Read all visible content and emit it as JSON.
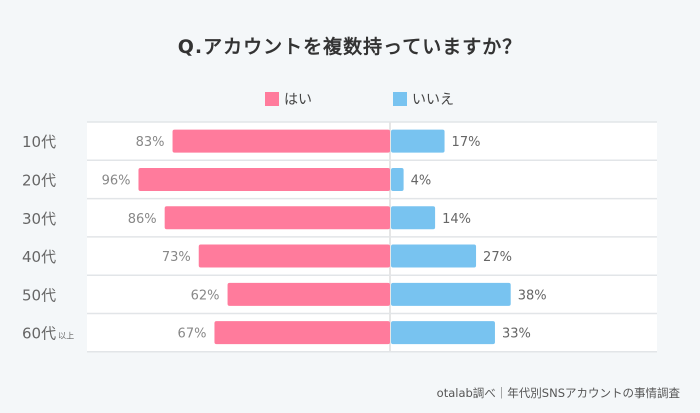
{
  "chart_data": {
    "type": "bar",
    "orientation": "diverging-horizontal",
    "title": "Q.アカウントを複数持っていますか？",
    "categories": [
      "10代",
      "20代",
      "30代",
      "40代",
      "50代",
      "60代"
    ],
    "category_suffix": {
      "5": "以上"
    },
    "series": [
      {
        "name": "はい",
        "color": "#ff7b9c",
        "values": [
          83,
          96,
          86,
          73,
          62,
          67
        ]
      },
      {
        "name": "いいえ",
        "color": "#78c3f0",
        "values": [
          17,
          4,
          14,
          27,
          38,
          33
        ]
      }
    ],
    "value_unit": "%",
    "grid": false,
    "legend": "top-center"
  },
  "source": "otalab調べ｜年代別SNSアカウントの事情調査"
}
